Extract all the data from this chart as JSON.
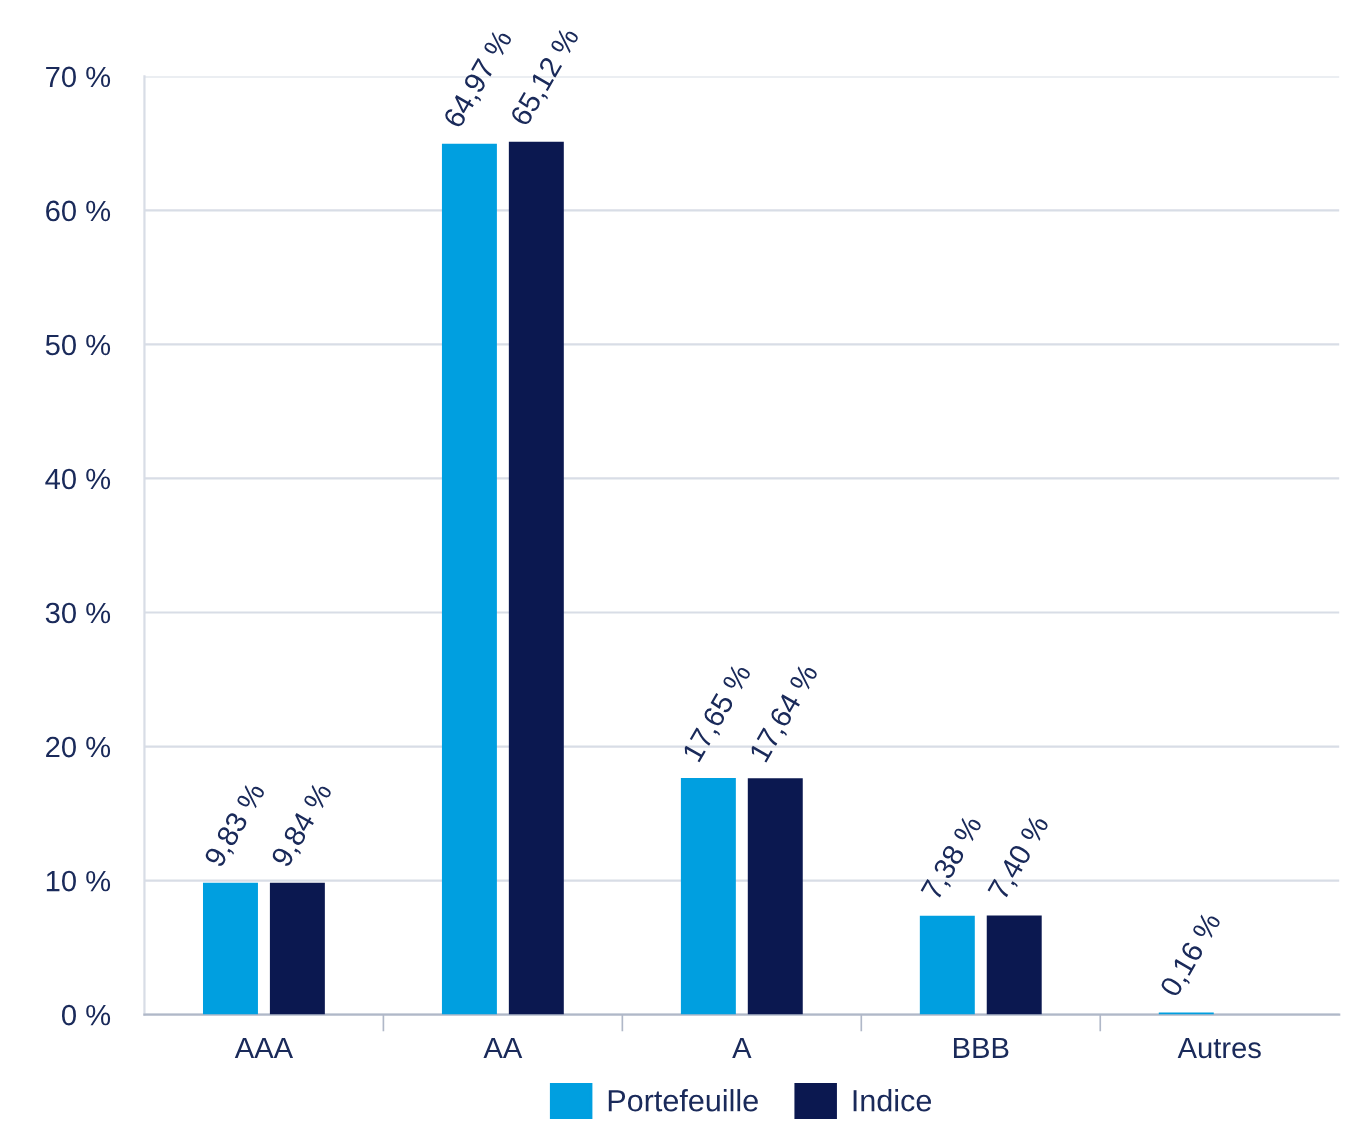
{
  "chart_data": {
    "type": "bar",
    "categories": [
      "AAA",
      "AA",
      "A",
      "BBB",
      "Autres"
    ],
    "series": [
      {
        "name": "Portefeuille",
        "color": "#009fe0",
        "values": [
          9.83,
          64.97,
          17.65,
          7.38,
          0.16
        ],
        "value_labels": [
          "9,83 %",
          "64,97 %",
          "17,65 %",
          "7,38 %",
          "0,16 %"
        ]
      },
      {
        "name": "Indice",
        "color": "#0b1850",
        "values": [
          9.84,
          65.12,
          17.64,
          7.4,
          null
        ],
        "value_labels": [
          "9,84 %",
          "65,12 %",
          "17,64 %",
          "7,40 %",
          null
        ]
      }
    ],
    "ylim": [
      0,
      70
    ],
    "yticks": [
      {
        "value": 0,
        "label": "0 %"
      },
      {
        "value": 10,
        "label": "10 %"
      },
      {
        "value": 20,
        "label": "20 %"
      },
      {
        "value": 30,
        "label": "30 %"
      },
      {
        "value": 40,
        "label": "40 %"
      },
      {
        "value": 50,
        "label": "50 %"
      },
      {
        "value": 60,
        "label": "60 %"
      },
      {
        "value": 70,
        "label": "70 %"
      }
    ],
    "grid": "y",
    "legend": "bottom"
  }
}
